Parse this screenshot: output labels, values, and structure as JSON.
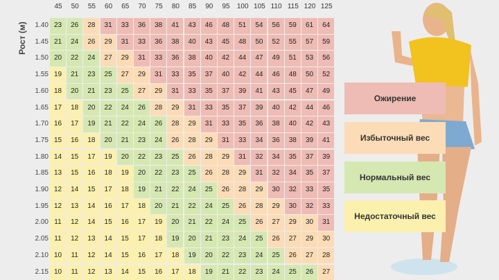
{
  "y_label": "Рост (м)",
  "weights": [
    45,
    50,
    55,
    60,
    65,
    70,
    75,
    80,
    85,
    90,
    95,
    100,
    105,
    110,
    115,
    120,
    125
  ],
  "heights": [
    "1.40",
    "1.45",
    "1.50",
    "1.55",
    "1.60",
    "1.65",
    "1.70",
    "1.75",
    "1.80",
    "1.85",
    "1.90",
    "1.95",
    "2.00",
    "2.05",
    "2.10",
    "2.15"
  ],
  "values": [
    [
      23,
      26,
      28,
      31,
      33,
      36,
      38,
      41,
      43,
      46,
      48,
      51,
      54,
      56,
      59,
      61,
      64
    ],
    [
      21,
      24,
      26,
      29,
      31,
      33,
      36,
      38,
      40,
      43,
      45,
      48,
      50,
      52,
      55,
      57,
      59
    ],
    [
      20,
      22,
      24,
      27,
      29,
      31,
      33,
      36,
      38,
      40,
      42,
      44,
      47,
      49,
      51,
      53,
      56
    ],
    [
      19,
      21,
      23,
      25,
      27,
      29,
      31,
      33,
      35,
      37,
      40,
      42,
      44,
      46,
      48,
      50,
      52
    ],
    [
      18,
      20,
      21,
      23,
      25,
      27,
      29,
      31,
      33,
      35,
      37,
      39,
      41,
      43,
      45,
      47,
      49
    ],
    [
      17,
      18,
      20,
      22,
      24,
      26,
      28,
      29,
      31,
      33,
      35,
      37,
      39,
      40,
      42,
      44,
      46
    ],
    [
      16,
      17,
      19,
      21,
      22,
      24,
      26,
      28,
      29,
      31,
      33,
      35,
      36,
      38,
      40,
      42,
      43
    ],
    [
      15,
      16,
      18,
      20,
      21,
      23,
      24,
      26,
      28,
      29,
      31,
      33,
      34,
      36,
      38,
      39,
      41
    ],
    [
      14,
      15,
      17,
      19,
      20,
      22,
      23,
      25,
      26,
      28,
      29,
      31,
      32,
      34,
      35,
      37,
      39
    ],
    [
      13,
      15,
      16,
      18,
      19,
      20,
      22,
      23,
      25,
      26,
      28,
      29,
      31,
      32,
      34,
      35,
      37
    ],
    [
      12,
      14,
      15,
      17,
      18,
      19,
      21,
      22,
      24,
      25,
      26,
      28,
      29,
      30,
      32,
      33,
      35
    ],
    [
      12,
      13,
      14,
      16,
      17,
      18,
      20,
      21,
      22,
      24,
      25,
      26,
      28,
      29,
      30,
      32,
      33
    ],
    [
      11,
      12,
      14,
      15,
      16,
      17,
      19,
      20,
      21,
      22,
      24,
      25,
      26,
      27,
      29,
      30,
      31
    ],
    [
      11,
      12,
      13,
      14,
      15,
      17,
      18,
      19,
      20,
      21,
      23,
      24,
      25,
      26,
      27,
      29,
      30
    ],
    [
      10,
      11,
      12,
      14,
      15,
      16,
      17,
      18,
      19,
      20,
      22,
      23,
      24,
      25,
      26,
      27,
      28
    ],
    [
      10,
      11,
      12,
      13,
      14,
      15,
      16,
      17,
      18,
      19,
      21,
      22,
      23,
      24,
      25,
      26,
      27
    ]
  ],
  "legend": [
    {
      "label": "Ожирение",
      "color": "#eebcb4"
    },
    {
      "label": "Избыточный вес",
      "color": "#fcdcb6"
    },
    {
      "label": "Нормальный вес",
      "color": "#d6e8b2"
    },
    {
      "label": "Недостаточный вес",
      "color": "#fbf0ae"
    }
  ]
}
